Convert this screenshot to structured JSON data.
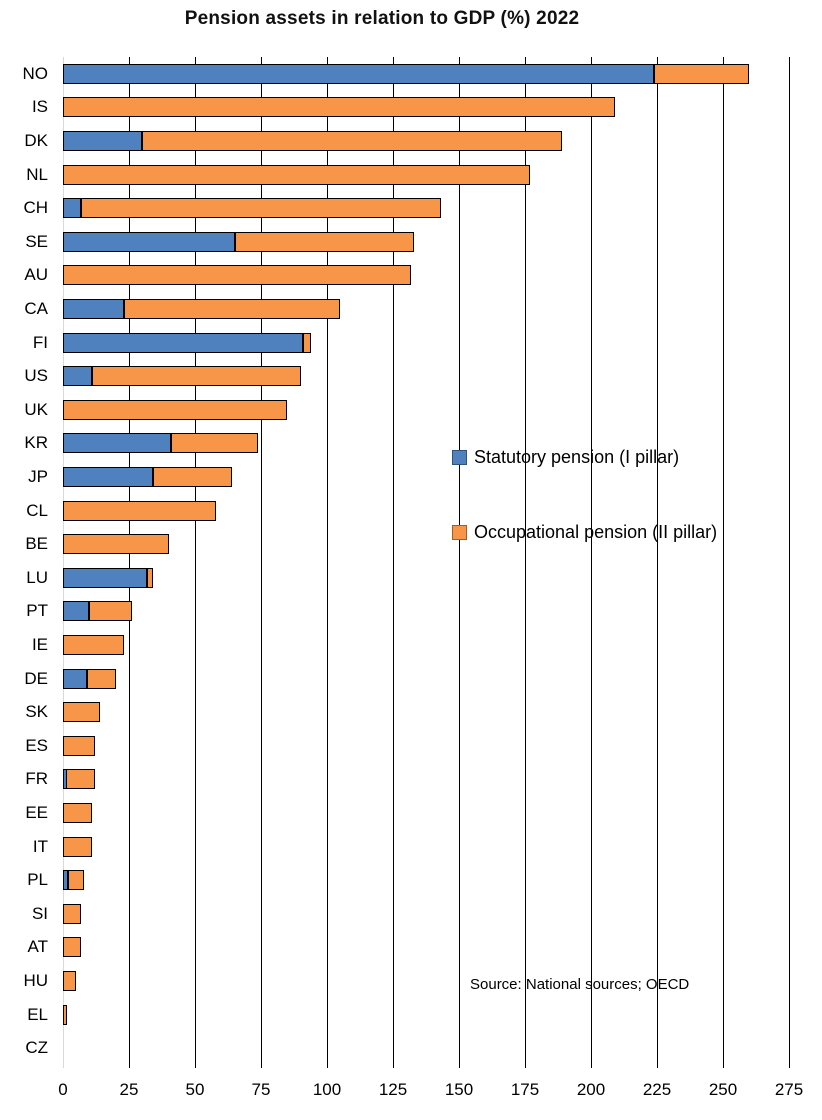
{
  "title": "Pension assets in relation to GDP (%) 2022",
  "source_note": "Source: National sources; OECD",
  "colors": {
    "statutory": "#4E81BD",
    "occupational": "#F79648",
    "bar_border": "#000000",
    "gridline": "#000000",
    "zero_axis_line": "#D9D9D9",
    "text": "#000000",
    "background": "#FFFFFF"
  },
  "legend": {
    "items": [
      {
        "label": "Statutory pension (I pillar)",
        "color_key": "statutory"
      },
      {
        "label": "Occupational pension (II pillar)",
        "color_key": "occupational"
      }
    ],
    "position": "inside-right"
  },
  "chart_data": {
    "type": "bar",
    "orientation": "horizontal",
    "stacked": true,
    "title": "Pension assets in relation to GDP (%) 2022",
    "xlabel": "",
    "ylabel": "",
    "xlim": [
      0,
      275
    ],
    "x_ticks": [
      0,
      25,
      50,
      75,
      100,
      125,
      150,
      175,
      200,
      225,
      250,
      275
    ],
    "grid": "vertical",
    "legend_position": "inside-right",
    "categories": [
      "NO",
      "IS",
      "DK",
      "NL",
      "CH",
      "SE",
      "AU",
      "CA",
      "FI",
      "US",
      "UK",
      "KR",
      "JP",
      "CL",
      "BE",
      "LU",
      "PT",
      "IE",
      "DE",
      "SK",
      "ES",
      "FR",
      "EE",
      "IT",
      "PL",
      "SI",
      "AT",
      "HU",
      "EL",
      "CZ"
    ],
    "series": [
      {
        "name": "Statutory pension (I pillar)",
        "values": [
          224,
          0,
          30,
          0,
          7,
          65,
          0,
          23,
          91,
          11,
          0,
          41,
          34,
          0,
          0,
          32,
          10,
          0,
          9,
          0,
          0,
          1,
          0,
          0,
          2,
          0,
          0,
          0,
          0,
          0
        ]
      },
      {
        "name": "Occupational pension (II pillar)",
        "values": [
          36,
          209,
          159,
          177,
          136,
          68,
          132,
          82,
          3,
          79,
          85,
          33,
          30,
          58,
          40,
          2,
          16,
          23,
          11,
          14,
          12,
          11,
          11,
          11,
          6,
          7,
          7,
          5,
          1,
          0
        ]
      }
    ],
    "totals": [
      260,
      209,
      189,
      177,
      143,
      133,
      132,
      105,
      94,
      90,
      85,
      74,
      64,
      58,
      40,
      34,
      26,
      23,
      20,
      14,
      12,
      12,
      11,
      11,
      8,
      7,
      7,
      5,
      1,
      0
    ]
  }
}
